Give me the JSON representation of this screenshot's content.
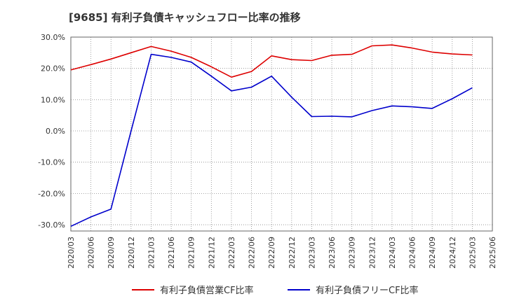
{
  "chart_data": {
    "type": "line",
    "title": "[9685]  有利子負債キャッシュフロー比率の推移",
    "xlabel": "",
    "ylabel": "",
    "ylim": [
      -32,
      30
    ],
    "yticks": [
      30,
      20,
      10,
      0,
      -10,
      -20,
      -30
    ],
    "ytick_labels": [
      "30.0%",
      "20.0%",
      "10.0%",
      "0.0%",
      "-10.0%",
      "-20.0%",
      "-30.0%"
    ],
    "x": [
      "2020/03",
      "2020/06",
      "2020/09",
      "2020/12",
      "2021/03",
      "2021/06",
      "2021/09",
      "2021/12",
      "2022/03",
      "2022/06",
      "2022/09",
      "2022/12",
      "2023/03",
      "2023/06",
      "2023/09",
      "2023/12",
      "2024/03",
      "2024/06",
      "2024/09",
      "2024/12",
      "2025/03",
      "2025/06"
    ],
    "grid": true,
    "legend_position": "bottom",
    "series": [
      {
        "name": "有利子負債営業CF比率",
        "color": "#dd0000",
        "values": [
          19.5,
          21.2,
          23.0,
          25.0,
          27.0,
          25.5,
          23.5,
          20.5,
          17.2,
          19.0,
          24.0,
          22.8,
          22.5,
          24.2,
          24.5,
          27.2,
          27.5,
          26.5,
          25.2,
          24.6,
          24.3,
          null
        ]
      },
      {
        "name": "有利子負債フリーCF比率",
        "color": "#0000cc",
        "values": [
          -30.5,
          -27.5,
          -25.0,
          0.0,
          24.5,
          23.5,
          22.0,
          17.5,
          12.8,
          14.0,
          17.5,
          10.8,
          4.6,
          4.7,
          4.5,
          6.5,
          8.0,
          7.7,
          7.2,
          10.3,
          13.8,
          null
        ]
      }
    ]
  }
}
